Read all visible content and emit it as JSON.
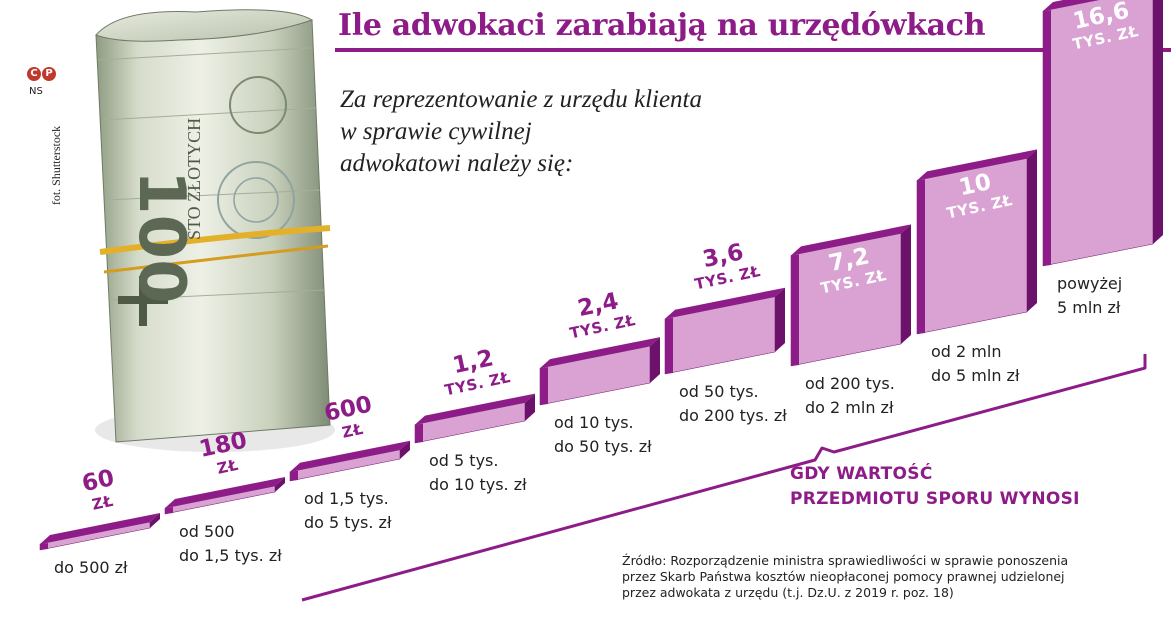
{
  "title": "Ile adwokaci zarabiają na urzędówkach",
  "subtitle_lines": [
    "Za reprezentowanie z urzędu klienta",
    "w sprawie cywilnej",
    "adwokatowi należy się:"
  ],
  "logo": {
    "symbols": [
      "C",
      "P"
    ],
    "code": "NS"
  },
  "photo_credit": "fot. Shutterstock",
  "banknote": {
    "denomination": "100",
    "text": "STO ZŁOTYCH"
  },
  "axis_caption_lines": [
    "GDY WARTOŚĆ",
    "PRZEDMIOTU SPORU WYNOSI"
  ],
  "source_lines": [
    "Źródło: Rozporządzenie ministra sprawiedliwości w sprawie ponoszenia",
    "przez Skarb Państwa kosztów nieopłaconej pomocy prawnej udzielonej",
    "przez adwokata z urzędu (t.j. Dz.U. z 2019 r. poz. 18)"
  ],
  "colors": {
    "accent": "#8e1c88",
    "accent_light": "#d9a2d3",
    "accent_dark": "#6d126a"
  },
  "chart_data": {
    "type": "bar",
    "title": "Ile adwokaci zarabiają na urzędówkach",
    "value_unit": "zł",
    "categories": [
      [
        "do 500 zł"
      ],
      [
        "od 500",
        "do 1,5 tys. zł"
      ],
      [
        "od 1,5 tys.",
        "do 5 tys. zł"
      ],
      [
        "od 5 tys.",
        "do 10 tys. zł"
      ],
      [
        "od 10 tys.",
        "do 50 tys. zł"
      ],
      [
        "od 50 tys.",
        "do 200 tys. zł"
      ],
      [
        "od 200 tys.",
        "do 2 mln zł"
      ],
      [
        "od 2 mln",
        "do 5 mln zł"
      ],
      [
        "powyżej",
        "5 mln zł"
      ]
    ],
    "values": [
      60,
      180,
      600,
      1200,
      2400,
      3600,
      7200,
      10000,
      16600
    ],
    "value_labels": [
      {
        "num": "60",
        "unit": "ZŁ"
      },
      {
        "num": "180",
        "unit": "ZŁ"
      },
      {
        "num": "600",
        "unit": "ZŁ"
      },
      {
        "num": "1,2",
        "unit": "TYS. ZŁ"
      },
      {
        "num": "2,4",
        "unit": "TYS. ZŁ"
      },
      {
        "num": "3,6",
        "unit": "TYS. ZŁ"
      },
      {
        "num": "7,2",
        "unit": "TYS. ZŁ"
      },
      {
        "num": "10",
        "unit": "TYS. ZŁ"
      },
      {
        "num": "16,6",
        "unit": "TYS. ZŁ"
      }
    ],
    "xlabel": "GDY WARTOŚĆ PRZEDMIOTU SPORU WYNOSI"
  }
}
